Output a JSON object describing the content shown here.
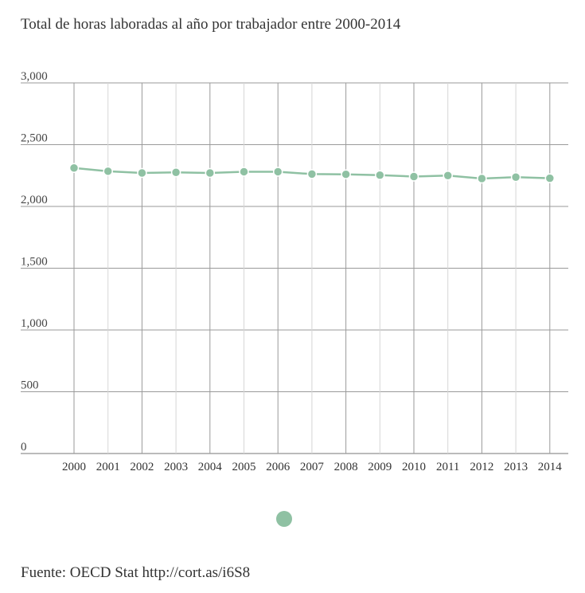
{
  "title": "Total de horas laboradas al año por trabajador entre 2000-2014",
  "source": "Fuente: OECD Stat http://cort.as/i6S8",
  "chart_data": {
    "type": "line",
    "x": [
      "2000",
      "2001",
      "2002",
      "2003",
      "2004",
      "2005",
      "2006",
      "2007",
      "2008",
      "2009",
      "2010",
      "2011",
      "2012",
      "2013",
      "2014"
    ],
    "series": [
      {
        "values": [
          2311,
          2285,
          2271,
          2276,
          2271,
          2281,
          2281,
          2262,
          2260,
          2253,
          2242,
          2250,
          2226,
          2237,
          2228
        ]
      }
    ],
    "yticks": [
      "0",
      "500",
      "1,000",
      "1,500",
      "2,000",
      "2,500",
      "3,000"
    ],
    "ylim": [
      0,
      3000
    ],
    "grid": true,
    "legend": "bottom",
    "color": "#8fc1a3"
  }
}
